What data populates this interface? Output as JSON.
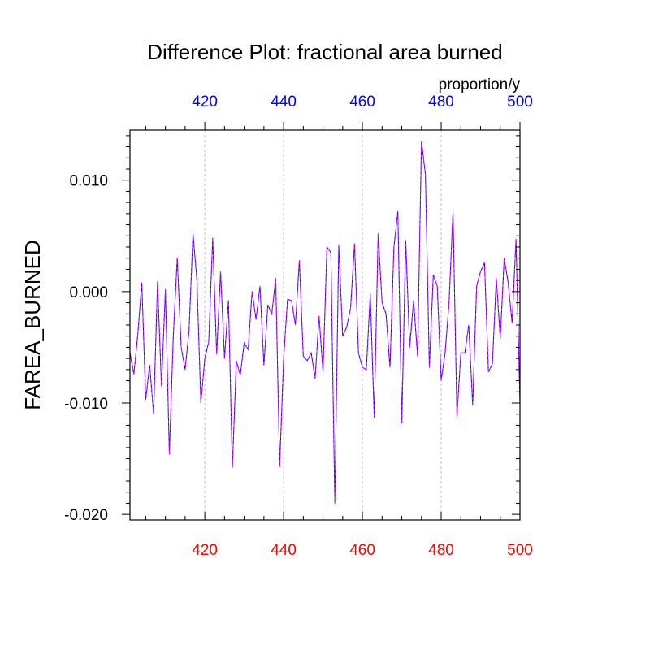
{
  "chart_data": {
    "type": "line",
    "title": "Difference Plot: fractional area burned",
    "ylabel": "FAREA_BURNED",
    "units_label": "proportion/y",
    "xlim": [
      401,
      500
    ],
    "ylim": [
      -0.0205,
      0.0145
    ],
    "x_ticks": [
      420,
      440,
      460,
      480,
      500
    ],
    "x_tick_labels_bottom": [
      "420",
      "440",
      "460",
      "480",
      "500"
    ],
    "x_tick_labels_top": [
      "420",
      "440",
      "460",
      "480",
      "500"
    ],
    "y_ticks": [
      0.01,
      0.0,
      -0.01,
      -0.02
    ],
    "y_tick_labels": [
      "0.010",
      "0.000",
      "-0.010",
      "-0.020"
    ],
    "grid_x": true,
    "colors": {
      "bottom_axis": "#ff0000",
      "top_axis": "#0000ff",
      "series_a": "#0000ff",
      "series_b": "#ff00ff",
      "grid": "#bbbbbb"
    },
    "x": [
      401,
      402,
      403,
      404,
      405,
      406,
      407,
      408,
      409,
      410,
      411,
      412,
      413,
      414,
      415,
      416,
      417,
      418,
      419,
      420,
      421,
      422,
      423,
      424,
      425,
      426,
      427,
      428,
      429,
      430,
      431,
      432,
      433,
      434,
      435,
      436,
      437,
      438,
      439,
      440,
      441,
      442,
      443,
      444,
      445,
      446,
      447,
      448,
      449,
      450,
      451,
      452,
      453,
      454,
      455,
      456,
      457,
      458,
      459,
      460,
      461,
      462,
      463,
      464,
      465,
      466,
      467,
      468,
      469,
      470,
      471,
      472,
      473,
      474,
      475,
      476,
      477,
      478,
      479,
      480,
      481,
      482,
      483,
      484,
      485,
      486,
      487,
      488,
      489,
      490,
      491,
      492,
      493,
      494,
      495,
      496,
      497,
      498,
      499,
      500
    ],
    "series": [
      {
        "values": [
          -0.0055,
          -0.0074,
          -0.0038,
          0.0008,
          -0.0097,
          -0.0066,
          -0.011,
          0.0009,
          -0.0085,
          0.0002,
          -0.0146,
          -0.004,
          0.003,
          -0.005,
          -0.007,
          -0.0035,
          0.0052,
          0.001,
          -0.01,
          -0.006,
          -0.0045,
          0.0048,
          -0.0056,
          0.0018,
          -0.006,
          -0.0008,
          -0.0158,
          -0.0062,
          -0.0075,
          -0.0046,
          -0.0052,
          0.0,
          -0.0025,
          0.0005,
          -0.0066,
          -0.0012,
          -0.002,
          0.0012,
          -0.0157,
          -0.006,
          -0.0007,
          -0.0008,
          -0.003,
          0.0028,
          -0.0058,
          -0.0062,
          -0.0055,
          -0.0078,
          -0.0022,
          -0.0072,
          0.004,
          0.0035,
          -0.019,
          0.0042,
          -0.004,
          -0.0032,
          -0.0015,
          0.0043,
          -0.0055,
          -0.0068,
          -0.007,
          -0.0002,
          -0.0113,
          0.0052,
          -0.001,
          -0.002,
          -0.0068,
          0.004,
          0.0072,
          -0.0118,
          0.0046,
          -0.005,
          -0.0008,
          -0.0058,
          0.0135,
          0.0105,
          -0.0068,
          0.0015,
          0.0005,
          -0.008,
          -0.0055,
          -0.001,
          0.0072,
          -0.0112,
          -0.0055,
          -0.0055,
          -0.003,
          -0.0102,
          0.0005,
          0.0018,
          0.0026,
          -0.0072,
          -0.0065,
          0.0012,
          -0.0042,
          0.003,
          0.0008,
          -0.0028,
          0.0047,
          -0.01
        ]
      }
    ]
  }
}
